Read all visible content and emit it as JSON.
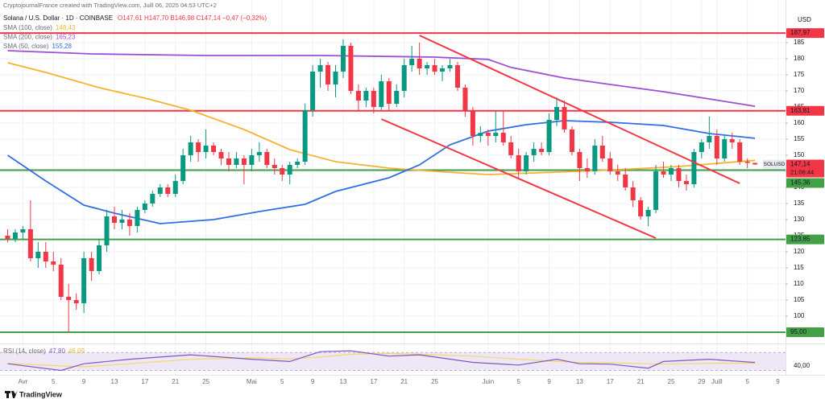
{
  "chart_data": {
    "type": "candlestick",
    "subtitle": "CryptojournalFrance created with TradingView.com, Juill 06, 2025 04:53 UTC+2",
    "title": "Solana / U.S. Dollar · 1D · COINBASE",
    "ohlc_label": "O147,61 H147,70 B146,98 C147,14 −0,47 (−0,32%)",
    "currency": "USD",
    "brand": "TradingView",
    "grid": true,
    "xlim": [
      "2025-03-29",
      "2025-07-10"
    ],
    "ylim": [
      92,
      194.5
    ],
    "yticks": [
      100,
      105,
      110,
      115,
      120,
      125,
      130,
      135,
      140,
      145,
      150,
      155,
      160,
      165,
      170,
      175,
      180,
      185
    ],
    "xticks": [
      {
        "value": "2025-04-01",
        "label": "Avr"
      },
      {
        "value": "2025-04-05",
        "label": "5"
      },
      {
        "value": "2025-04-09",
        "label": "9"
      },
      {
        "value": "2025-04-13",
        "label": "13"
      },
      {
        "value": "2025-04-17",
        "label": "17"
      },
      {
        "value": "2025-04-21",
        "label": "21"
      },
      {
        "value": "2025-04-25",
        "label": "25"
      },
      {
        "value": "2025-05-01",
        "label": "Mai"
      },
      {
        "value": "2025-05-05",
        "label": "5"
      },
      {
        "value": "2025-05-09",
        "label": "9"
      },
      {
        "value": "2025-05-13",
        "label": "13"
      },
      {
        "value": "2025-05-17",
        "label": "17"
      },
      {
        "value": "2025-05-21",
        "label": "21"
      },
      {
        "value": "2025-05-25",
        "label": "25"
      },
      {
        "value": "2025-06-01",
        "label": "Juin"
      },
      {
        "value": "2025-06-05",
        "label": "5"
      },
      {
        "value": "2025-06-09",
        "label": "9"
      },
      {
        "value": "2025-06-13",
        "label": "13"
      },
      {
        "value": "2025-06-17",
        "label": "17"
      },
      {
        "value": "2025-06-21",
        "label": "21"
      },
      {
        "value": "2025-06-25",
        "label": "25"
      },
      {
        "value": "2025-06-29",
        "label": "29"
      },
      {
        "value": "2025-07-01",
        "label": "Juill"
      },
      {
        "value": "2025-07-05",
        "label": "5"
      },
      {
        "value": "2025-07-09",
        "label": "9"
      }
    ],
    "x": [
      "2025-03-30",
      "2025-03-31",
      "2025-04-01",
      "2025-04-02",
      "2025-04-03",
      "2025-04-04",
      "2025-04-05",
      "2025-04-06",
      "2025-04-07",
      "2025-04-08",
      "2025-04-09",
      "2025-04-10",
      "2025-04-11",
      "2025-04-12",
      "2025-04-13",
      "2025-04-14",
      "2025-04-15",
      "2025-04-16",
      "2025-04-17",
      "2025-04-18",
      "2025-04-19",
      "2025-04-20",
      "2025-04-21",
      "2025-04-22",
      "2025-04-23",
      "2025-04-24",
      "2025-04-25",
      "2025-04-26",
      "2025-04-27",
      "2025-04-28",
      "2025-04-29",
      "2025-04-30",
      "2025-05-01",
      "2025-05-02",
      "2025-05-03",
      "2025-05-04",
      "2025-05-05",
      "2025-05-06",
      "2025-05-07",
      "2025-05-08",
      "2025-05-09",
      "2025-05-10",
      "2025-05-11",
      "2025-05-12",
      "2025-05-13",
      "2025-05-14",
      "2025-05-15",
      "2025-05-16",
      "2025-05-17",
      "2025-05-18",
      "2025-05-19",
      "2025-05-20",
      "2025-05-21",
      "2025-05-22",
      "2025-05-23",
      "2025-05-24",
      "2025-05-25",
      "2025-05-26",
      "2025-05-27",
      "2025-05-28",
      "2025-05-29",
      "2025-05-30",
      "2025-05-31",
      "2025-06-01",
      "2025-06-02",
      "2025-06-03",
      "2025-06-04",
      "2025-06-05",
      "2025-06-06",
      "2025-06-07",
      "2025-06-08",
      "2025-06-09",
      "2025-06-10",
      "2025-06-11",
      "2025-06-12",
      "2025-06-13",
      "2025-06-14",
      "2025-06-15",
      "2025-06-16",
      "2025-06-17",
      "2025-06-18",
      "2025-06-19",
      "2025-06-20",
      "2025-06-21",
      "2025-06-22",
      "2025-06-23",
      "2025-06-24",
      "2025-06-25",
      "2025-06-26",
      "2025-06-27",
      "2025-06-28",
      "2025-06-29",
      "2025-06-30",
      "2025-07-01",
      "2025-07-02",
      "2025-07-03",
      "2025-07-04",
      "2025-07-05",
      "2025-07-06"
    ],
    "series": [
      {
        "name": "SOLUSD",
        "up_color": "#089981",
        "down_color": "#f23645",
        "open": [
          125,
          124,
          126,
          127,
          118,
          120,
          117,
          116,
          106,
          105,
          104,
          118,
          114,
          122,
          131,
          129,
          130,
          128,
          133,
          135,
          138,
          140,
          138,
          142,
          150,
          154,
          151,
          153,
          151,
          149,
          147,
          149,
          147,
          150,
          151,
          147,
          146,
          144,
          147,
          148,
          164,
          176,
          178,
          172,
          176,
          184,
          170,
          167,
          170,
          165,
          173,
          166,
          170,
          178,
          180,
          177,
          178,
          176,
          177,
          178,
          171,
          164,
          156,
          157,
          156,
          157,
          154,
          150,
          145,
          150,
          152,
          151,
          161,
          165,
          158,
          151,
          146,
          145,
          153,
          149,
          145,
          144,
          140,
          136,
          131,
          133,
          145,
          144,
          146,
          142,
          141,
          151,
          154,
          156,
          149,
          155,
          154,
          148,
          147.61
        ],
        "high": [
          127,
          127,
          128,
          136,
          123,
          123,
          120,
          118,
          110,
          107,
          120,
          120,
          124,
          133,
          134,
          133,
          132,
          134,
          136,
          139,
          141,
          141,
          144,
          152,
          156,
          155,
          158,
          154,
          152,
          151,
          151,
          150,
          152,
          154,
          152,
          149,
          147,
          148,
          149,
          166,
          178,
          180,
          179,
          178,
          186,
          185,
          172,
          171,
          171,
          175,
          174,
          172,
          180,
          184,
          185,
          179,
          180,
          178,
          180,
          179,
          172,
          165,
          159,
          158,
          164,
          164,
          156,
          152,
          151,
          154,
          154,
          163,
          168,
          167,
          159,
          152,
          149,
          155,
          156,
          151,
          147,
          146,
          142,
          137,
          134,
          147,
          148,
          147,
          147,
          144,
          152,
          155,
          162,
          158,
          156,
          157,
          155,
          149,
          147.7
        ],
        "low": [
          123,
          123,
          124,
          117,
          115,
          115,
          114,
          105,
          95,
          102,
          101,
          111,
          113,
          120,
          127,
          127,
          125,
          126,
          132,
          134,
          137,
          137,
          137,
          141,
          148,
          148,
          149,
          150,
          147,
          145,
          146,
          141,
          145,
          148,
          146,
          144,
          142,
          141,
          146,
          147,
          162,
          171,
          170,
          168,
          174,
          169,
          164,
          165,
          163,
          164,
          164,
          165,
          168,
          176,
          175,
          175,
          175,
          173,
          176,
          170,
          162,
          153,
          154,
          153,
          154,
          153,
          149,
          143,
          144,
          148,
          150,
          150,
          159,
          157,
          150,
          142,
          143,
          144,
          148,
          144,
          142,
          139,
          134,
          130,
          128,
          132,
          143,
          142,
          140,
          139,
          140,
          149,
          152,
          147,
          148,
          152,
          147,
          146,
          146.98
        ],
        "close": [
          124,
          126,
          127,
          118,
          120,
          117,
          116,
          106,
          105,
          104,
          118,
          114,
          122,
          131,
          129,
          130,
          128,
          133,
          135,
          138,
          140,
          138,
          142,
          150,
          154,
          151,
          153,
          151,
          149,
          147,
          149,
          147,
          150,
          151,
          147,
          146,
          144,
          147,
          148,
          164,
          176,
          178,
          172,
          176,
          184,
          170,
          167,
          170,
          165,
          173,
          166,
          170,
          178,
          180,
          177,
          178,
          176,
          177,
          178,
          171,
          164,
          156,
          157,
          156,
          157,
          154,
          150,
          145,
          150,
          152,
          151,
          161,
          165,
          158,
          151,
          146,
          145,
          153,
          149,
          145,
          144,
          140,
          136,
          131,
          133,
          145,
          144,
          146,
          142,
          141,
          151,
          154,
          156,
          149,
          155,
          154,
          148,
          147.61,
          147.14
        ]
      }
    ],
    "indicators": [
      {
        "name": "SMA (100, close)",
        "value_label": "148,43",
        "color": "#f5b331",
        "x": [
          "2025-03-30",
          "2025-04-04",
          "2025-04-11",
          "2025-04-17",
          "2025-04-23",
          "2025-04-30",
          "2025-05-06",
          "2025-05-12",
          "2025-05-19",
          "2025-05-25",
          "2025-06-01",
          "2025-06-07",
          "2025-06-13",
          "2025-06-20",
          "2025-06-26",
          "2025-07-06"
        ],
        "values": [
          178.75,
          175.75,
          171,
          167.75,
          164,
          158,
          151.75,
          148,
          146,
          145,
          144,
          144.5,
          145,
          145.75,
          146.5,
          148.43
        ]
      },
      {
        "name": "SMA (200, close)",
        "value_label": "165,23",
        "color": "#9c4fd6",
        "x": [
          "2025-03-30",
          "2025-04-10",
          "2025-04-25",
          "2025-05-10",
          "2025-05-25",
          "2025-06-01",
          "2025-06-04",
          "2025-06-11",
          "2025-06-17",
          "2025-06-24",
          "2025-06-30",
          "2025-07-06"
        ],
        "values": [
          182.5,
          181.5,
          181,
          181,
          180.5,
          179.8,
          177.3,
          174,
          172,
          169.75,
          167.5,
          165.23
        ]
      },
      {
        "name": "SMA (50, close)",
        "value_label": "155,28",
        "color": "#2f6fe0",
        "x": [
          "2025-03-30",
          "2025-04-04",
          "2025-04-09",
          "2025-04-13",
          "2025-04-19",
          "2025-04-26",
          "2025-05-02",
          "2025-05-08",
          "2025-05-12",
          "2025-05-19",
          "2025-05-23",
          "2025-05-27",
          "2025-06-01",
          "2025-06-06",
          "2025-06-11",
          "2025-06-17",
          "2025-06-24",
          "2025-06-30",
          "2025-07-06"
        ],
        "values": [
          150,
          142,
          134.5,
          132,
          128.75,
          130,
          132.5,
          134.75,
          138.75,
          143,
          147,
          153.25,
          157.5,
          159.5,
          160.75,
          160.25,
          159.25,
          156.75,
          155.28
        ]
      }
    ],
    "levels": [
      {
        "value": 187.97,
        "label": "187,97",
        "color": "#f23645"
      },
      {
        "value": 163.81,
        "label": "163,81",
        "color": "#f23645"
      },
      {
        "value": 145.36,
        "label": "145,36",
        "color": "#43a047"
      },
      {
        "value": 123.85,
        "label": "123,85",
        "color": "#43a047"
      },
      {
        "value": 95,
        "label": "95,00",
        "color": "#43a047"
      }
    ],
    "trendlines": [
      {
        "x": [
          "2025-05-23",
          "2025-07-04"
        ],
        "y": [
          187.25,
          141.25
        ],
        "color": "#f23645"
      },
      {
        "x": [
          "2025-05-18",
          "2025-06-23"
        ],
        "y": [
          161.25,
          124.25
        ],
        "color": "#f23645"
      }
    ],
    "last_price": {
      "value": 147.14,
      "label": "147,14",
      "countdown": "21:06:44",
      "color": "#f23645"
    },
    "rsi": {
      "label": "RSI (14, close)",
      "value_label": "47,80",
      "ma_label": "46,09",
      "color": "#7e57c2",
      "ma_color": "#f5d76e",
      "band": [
        30,
        70
      ],
      "band_color": "#ede7f6",
      "ylim": [
        20,
        85
      ],
      "yticks": [
        {
          "value": 40,
          "label": "40,00"
        }
      ],
      "x": [
        "2025-03-30",
        "2025-04-06",
        "2025-04-09",
        "2025-04-15",
        "2025-04-23",
        "2025-05-01",
        "2025-05-06",
        "2025-05-10",
        "2025-05-14",
        "2025-05-19",
        "2025-05-23",
        "2025-05-30",
        "2025-06-05",
        "2025-06-10",
        "2025-06-13",
        "2025-06-17",
        "2025-06-22",
        "2025-06-24",
        "2025-06-30",
        "2025-07-06"
      ],
      "values": [
        45,
        30,
        45,
        55,
        65,
        55,
        50,
        72,
        74,
        62,
        65,
        48,
        42,
        55,
        45,
        44,
        35,
        50,
        55,
        47.8
      ],
      "ma_values": [
        46,
        40,
        38,
        45,
        55,
        58,
        56,
        60,
        66,
        68,
        66,
        62,
        55,
        50,
        48,
        47,
        45,
        44,
        46,
        46.09
      ]
    }
  }
}
